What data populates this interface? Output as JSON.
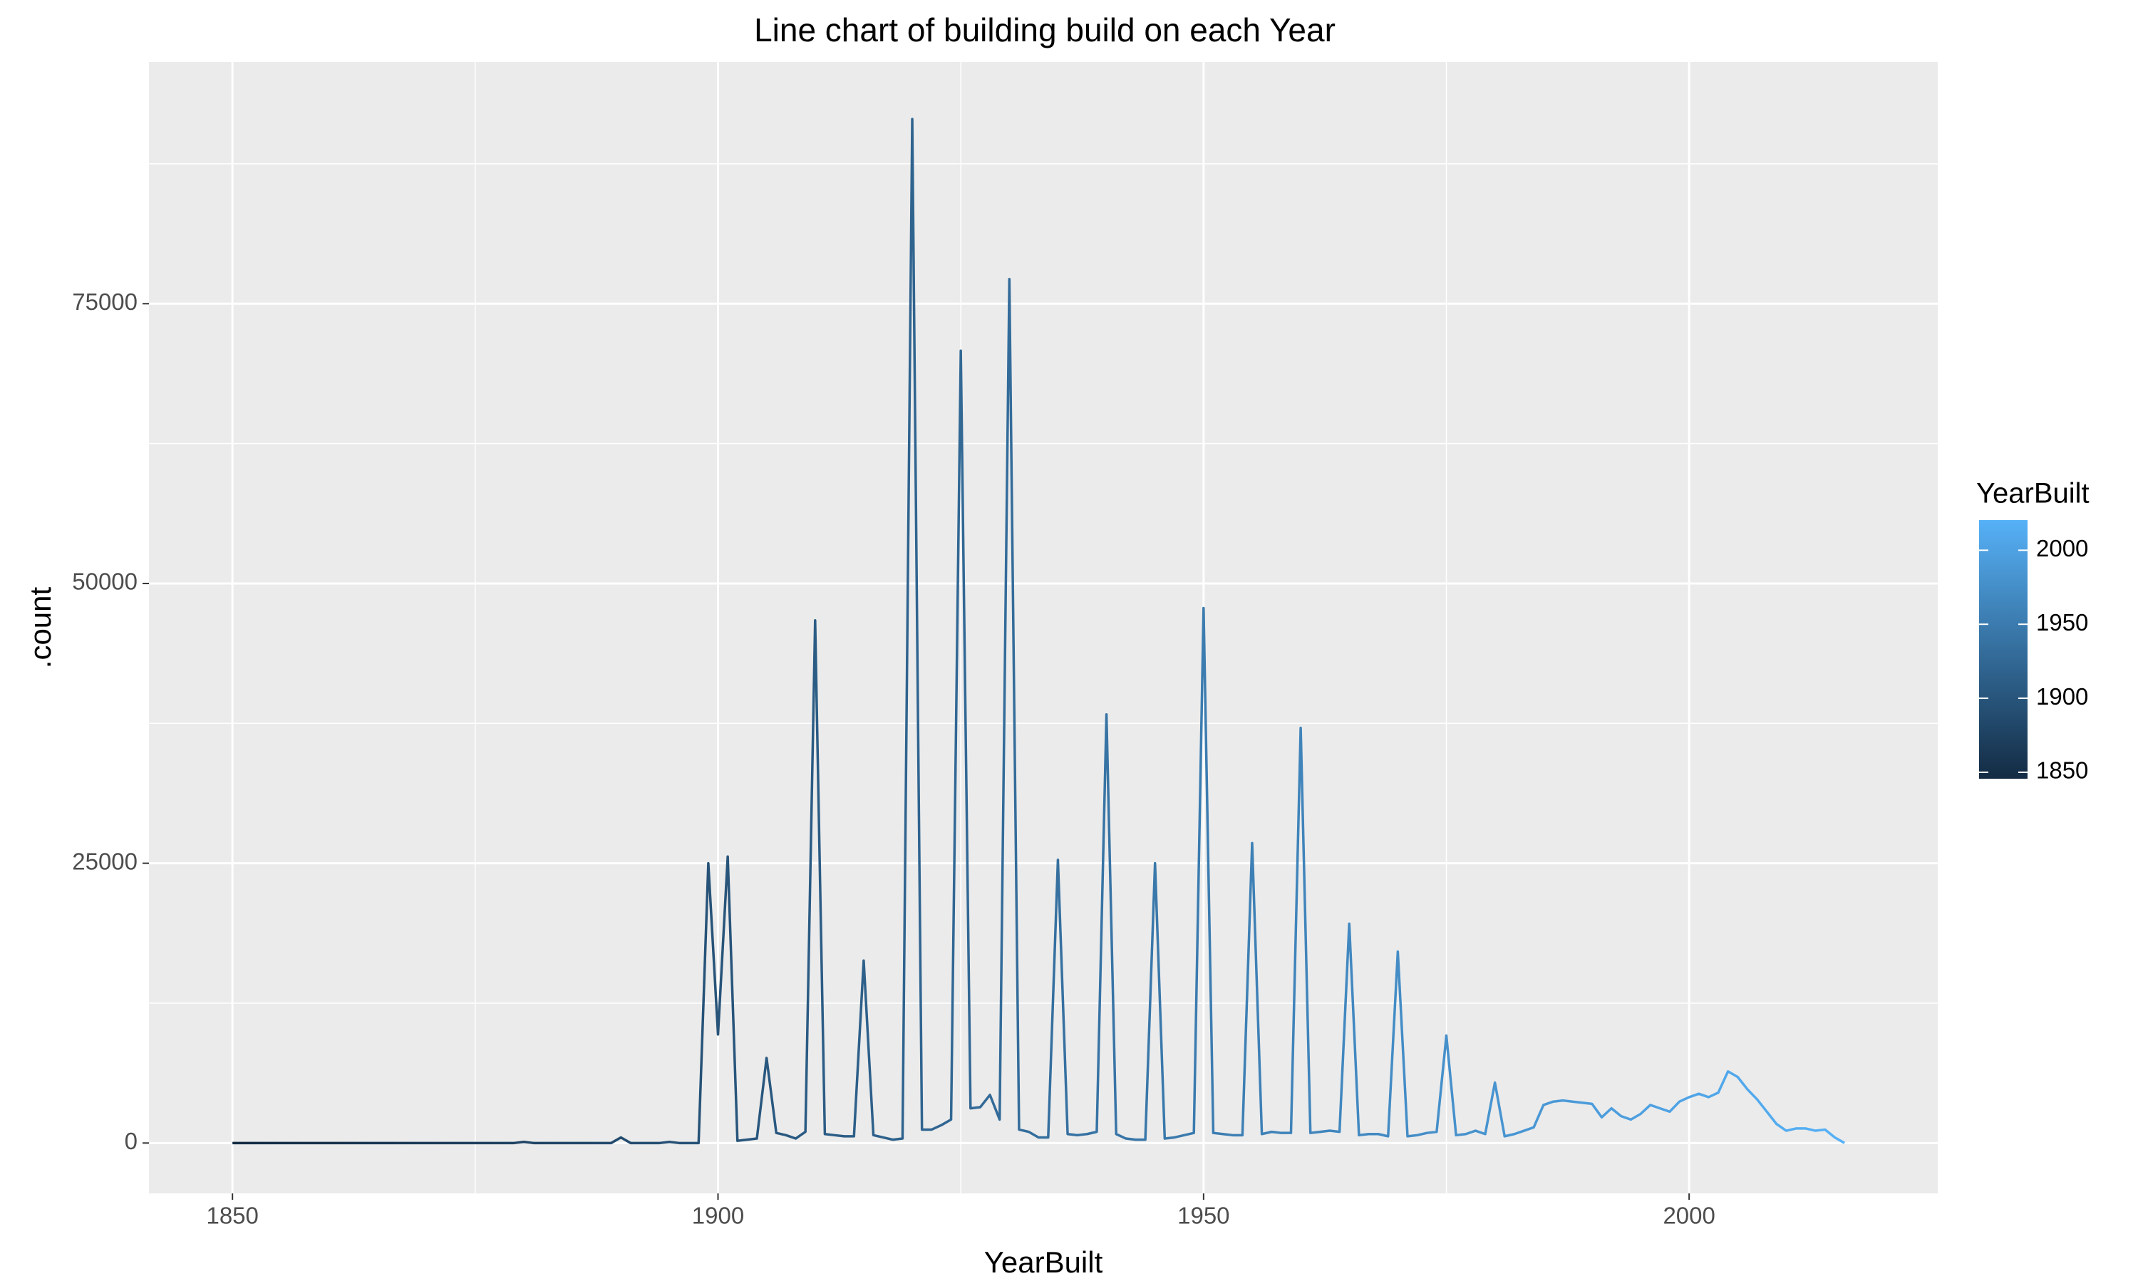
{
  "chart_data": {
    "type": "line",
    "title": "Line chart of building build on each Year",
    "x_label": "YearBuilt",
    "y_label": ".count",
    "legend_title": "YearBuilt",
    "color_low": "#132B43",
    "color_high": "#56B1F7",
    "x": [
      1850,
      1851,
      1852,
      1853,
      1854,
      1855,
      1856,
      1857,
      1858,
      1859,
      1860,
      1861,
      1862,
      1863,
      1864,
      1865,
      1866,
      1867,
      1868,
      1869,
      1870,
      1871,
      1872,
      1873,
      1874,
      1875,
      1876,
      1877,
      1878,
      1879,
      1880,
      1881,
      1882,
      1883,
      1884,
      1885,
      1886,
      1887,
      1888,
      1889,
      1890,
      1891,
      1892,
      1893,
      1894,
      1895,
      1896,
      1897,
      1898,
      1899,
      1900,
      1901,
      1902,
      1903,
      1904,
      1905,
      1906,
      1907,
      1908,
      1909,
      1910,
      1911,
      1912,
      1913,
      1914,
      1915,
      1916,
      1917,
      1918,
      1919,
      1920,
      1921,
      1922,
      1923,
      1924,
      1925,
      1926,
      1927,
      1928,
      1929,
      1930,
      1931,
      1932,
      1933,
      1934,
      1935,
      1936,
      1937,
      1938,
      1939,
      1940,
      1941,
      1942,
      1943,
      1944,
      1945,
      1946,
      1947,
      1948,
      1949,
      1950,
      1951,
      1952,
      1953,
      1954,
      1955,
      1956,
      1957,
      1958,
      1959,
      1960,
      1961,
      1962,
      1963,
      1964,
      1965,
      1966,
      1967,
      1968,
      1969,
      1970,
      1971,
      1972,
      1973,
      1974,
      1975,
      1976,
      1977,
      1978,
      1979,
      1980,
      1981,
      1982,
      1983,
      1984,
      1985,
      1986,
      1987,
      1988,
      1989,
      1990,
      1991,
      1992,
      1993,
      1994,
      1995,
      1996,
      1997,
      1998,
      1999,
      2000,
      2001,
      2002,
      2003,
      2004,
      2005,
      2006,
      2007,
      2008,
      2009,
      2010,
      2011,
      2012,
      2013,
      2014,
      2015,
      2016
    ],
    "values": [
      0,
      0,
      0,
      0,
      0,
      0,
      0,
      0,
      0,
      0,
      0,
      0,
      0,
      0,
      0,
      0,
      0,
      0,
      0,
      0,
      0,
      0,
      0,
      0,
      0,
      0,
      0,
      0,
      0,
      0,
      100,
      0,
      0,
      0,
      0,
      0,
      0,
      0,
      0,
      0,
      500,
      0,
      0,
      0,
      0,
      100,
      0,
      0,
      0,
      25000,
      9700,
      25600,
      200,
      300,
      400,
      7600,
      900,
      700,
      400,
      1000,
      46700,
      800,
      700,
      600,
      600,
      16300,
      700,
      500,
      300,
      400,
      91500,
      1200,
      1200,
      1600,
      2100,
      70800,
      3100,
      3200,
      4300,
      2100,
      77200,
      1200,
      1000,
      500,
      500,
      25300,
      800,
      700,
      800,
      1000,
      38300,
      800,
      400,
      300,
      300,
      25000,
      400,
      500,
      700,
      900,
      47800,
      900,
      800,
      700,
      700,
      26800,
      800,
      1000,
      900,
      900,
      37100,
      900,
      1000,
      1100,
      1000,
      19600,
      700,
      800,
      800,
      600,
      17100,
      600,
      700,
      900,
      1000,
      9600,
      700,
      800,
      1100,
      800,
      5400,
      600,
      800,
      1100,
      1400,
      3400,
      3700,
      3800,
      3700,
      3600,
      3500,
      2300,
      3100,
      2400,
      2100,
      2600,
      3400,
      3100,
      2800,
      3700,
      4100,
      4400,
      4100,
      4500,
      6400,
      5900,
      4800,
      3900,
      2800,
      1700,
      1100,
      1300,
      1300,
      1100,
      1200,
      500,
      0
    ],
    "xlim": [
      1841.4,
      2025.6
    ],
    "ylim": [
      -4500,
      96600
    ],
    "xticks": [
      1850,
      1900,
      1950,
      2000
    ],
    "yticks": [
      0,
      25000,
      50000,
      75000
    ],
    "x_minor_grid": [
      1875,
      1925,
      1975
    ],
    "y_minor_grid": [
      12500,
      37500,
      62500,
      87500
    ],
    "legend_ticks": [
      1850,
      1900,
      1950,
      2000
    ],
    "grid": true
  }
}
